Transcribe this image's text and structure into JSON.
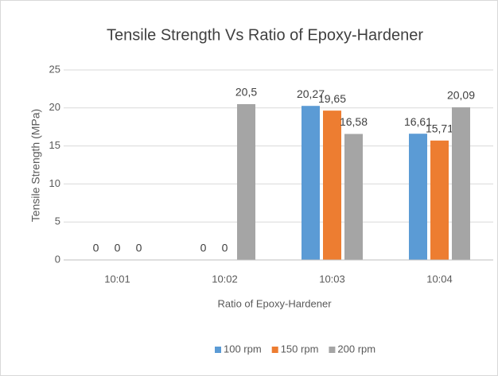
{
  "chart_data": {
    "type": "bar",
    "title": "Tensile Strength Vs Ratio of Epoxy-Hardener",
    "x_label": "Ratio of Epoxy-Hardener",
    "y_label": "Tensile Strength (MPa)",
    "categories": [
      "10:01",
      "10:02",
      "10:03",
      "10:04"
    ],
    "series": [
      {
        "name": "100 rpm",
        "color": "#5b9bd5",
        "values": [
          0,
          0,
          20.27,
          16.61
        ],
        "value_labels": [
          "0",
          "0",
          "20,27",
          "16,61"
        ]
      },
      {
        "name": "150 rpm",
        "color": "#ed7d31",
        "values": [
          0,
          0,
          19.65,
          15.71
        ],
        "value_labels": [
          "0",
          "0",
          "19,65",
          "15,71"
        ]
      },
      {
        "name": "200 rpm",
        "color": "#a5a5a5",
        "values": [
          0,
          20.5,
          16.58,
          20.09
        ],
        "value_labels": [
          "0",
          "20,5",
          "16,58",
          "20,09"
        ]
      }
    ],
    "ylim": [
      0,
      25
    ],
    "yticks": [
      0,
      5,
      10,
      15,
      20,
      25
    ],
    "grid": true,
    "legend": "bottom"
  }
}
